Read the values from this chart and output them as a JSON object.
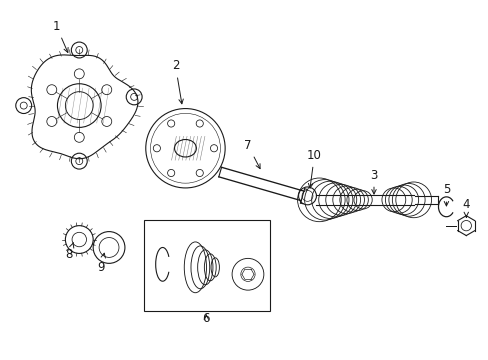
{
  "bg_color": "#ffffff",
  "line_color": "#1a1a1a",
  "figsize": [
    4.89,
    3.6
  ],
  "dpi": 100,
  "label_fontsize": 8.5
}
